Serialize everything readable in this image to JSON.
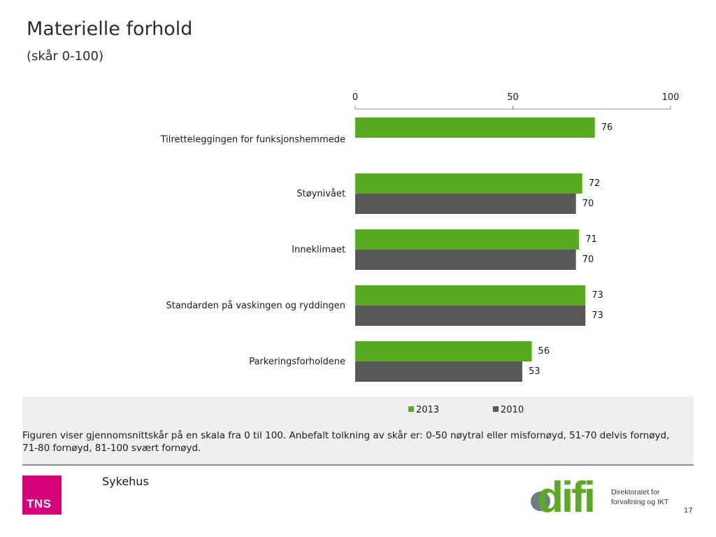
{
  "page": {
    "title": "Materielle forhold",
    "subtitle": "(skår 0-100)",
    "note": "Figuren viser gjennomsnittskår på en skala fra 0 til 100. Anbefalt tolkning av skår er: 0-50 nøytral eller misfornøyd, 51-70 delvis fornøyd, 71-80 fornøyd, 81-100 svært fornøyd.",
    "footer_label": "Sykehus",
    "page_number": "17"
  },
  "logos": {
    "tns": "TNS",
    "difi": "difi",
    "difi_line1": "Direktoratet for",
    "difi_line2": "forvaltning og IKT"
  },
  "chart_data": {
    "type": "bar",
    "orientation": "horizontal",
    "title": "",
    "xlim": [
      0,
      100
    ],
    "ticks": [
      0,
      50,
      100
    ],
    "categories": [
      "Tilretteleggingen for funksjonshemmede",
      "Støynivået",
      "Inneklimaet",
      "Standarden på vaskingen og ryddingen",
      "Parkeringsforholdene"
    ],
    "series": [
      {
        "name": "2013",
        "color": "#5aab22",
        "values": [
          76,
          72,
          71,
          73,
          56
        ]
      },
      {
        "name": "2010",
        "color": "#585858",
        "values": [
          null,
          70,
          70,
          73,
          53
        ]
      }
    ],
    "legend_position": "bottom"
  }
}
